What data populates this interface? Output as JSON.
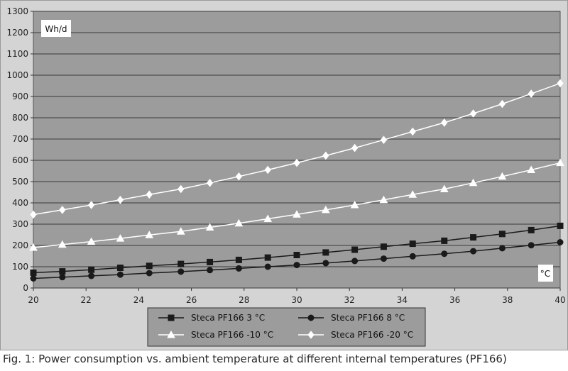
{
  "caption": "Fig. 1: Power consumption vs. ambient temperature at different internal temperatures (PF166)",
  "colors": {
    "plot_background": "#9c9c9c",
    "frame_background": "#d4d4d4",
    "grid": "#3a3a3a",
    "dark_series": "#1a1a1a",
    "light_series": "#ffffff"
  },
  "chart_data": {
    "type": "line",
    "ylabel": "Wh/d",
    "xlabel": "°C",
    "xlim": [
      20,
      40
    ],
    "ylim": [
      0,
      1300
    ],
    "x_ticks": [
      20,
      22,
      24,
      26,
      28,
      30,
      32,
      34,
      36,
      38,
      40
    ],
    "y_ticks": [
      0,
      100,
      200,
      300,
      400,
      500,
      600,
      700,
      800,
      900,
      1000,
      1100,
      1200,
      1300
    ],
    "grid": "horizontal",
    "legend_position": "bottom",
    "x": [
      20,
      21.1,
      22.2,
      23.3,
      24.4,
      25.6,
      26.7,
      27.8,
      28.9,
      30,
      31.1,
      32.2,
      33.3,
      34.4,
      35.6,
      36.7,
      37.8,
      38.9,
      40
    ],
    "series": [
      {
        "name": "Steca PF166 3 °C",
        "marker": "square",
        "color": "#1a1a1a",
        "values": [
          72,
          78,
          86,
          95,
          104,
          113,
          122,
          132,
          143,
          155,
          167,
          180,
          194,
          208,
          222,
          238,
          254,
          272,
          292
        ]
      },
      {
        "name": "Steca PF166 8 °C",
        "marker": "circle",
        "color": "#1a1a1a",
        "values": [
          45,
          51,
          57,
          63,
          70,
          77,
          84,
          92,
          100,
          108,
          117,
          127,
          138,
          149,
          161,
          173,
          187,
          201,
          215
        ]
      },
      {
        "name": "Steca PF166 -10 °C",
        "marker": "triangle",
        "color": "#ffffff",
        "values": [
          190,
          204,
          218,
          233,
          249,
          266,
          285,
          304,
          325,
          346,
          367,
          390,
          414,
          439,
          465,
          494,
          524,
          555,
          588
        ]
      },
      {
        "name": "Steca PF166 -20 °C",
        "marker": "diamond",
        "color": "#ffffff",
        "values": [
          345,
          367,
          390,
          414,
          439,
          465,
          494,
          524,
          555,
          588,
          622,
          658,
          696,
          735,
          777,
          820,
          865,
          913,
          962
        ]
      }
    ]
  }
}
